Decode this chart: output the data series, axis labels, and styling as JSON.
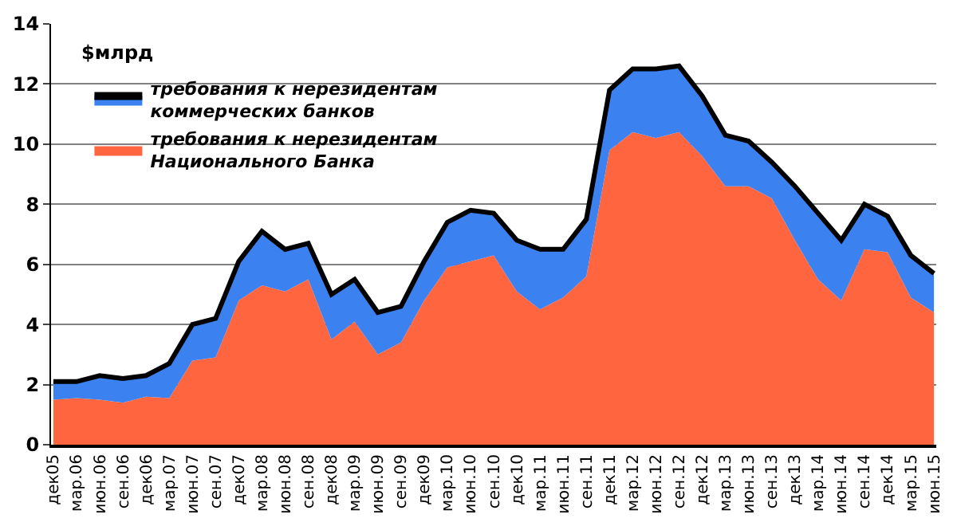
{
  "chart_data": {
    "type": "area",
    "stacked": true,
    "ylabel": "$млрд",
    "legend": "top left",
    "grid": "y",
    "categories": [
      "дек05",
      "мар.06",
      "июн.06",
      "сен.06",
      "дек06",
      "мар.07",
      "июн.07",
      "сен.07",
      "дек07",
      "мар.08",
      "июн.08",
      "сен.08",
      "дек08",
      "мар.09",
      "июн.09",
      "сен.09",
      "дек09",
      "мар.10",
      "июн.10",
      "сен.10",
      "дек10",
      "мар.11",
      "июн.11",
      "сен.11",
      "дек11",
      "мар.12",
      "июн.12",
      "сен.12",
      "дек12",
      "мар.13",
      "июн.13",
      "сен.13",
      "дек13",
      "мар.14",
      "июн.14",
      "сен.14",
      "дек14",
      "мар.15",
      "июн.15"
    ],
    "ylim": [
      0,
      14
    ],
    "yticks": [
      0,
      2,
      4,
      6,
      8,
      10,
      12,
      14
    ],
    "series": [
      {
        "name": "требования к нерезидентам\nНационального Банка",
        "color": "#ff6640",
        "values": [
          1.5,
          1.55,
          1.5,
          1.4,
          1.6,
          1.55,
          2.8,
          2.9,
          4.8,
          5.3,
          5.1,
          5.5,
          3.5,
          4.1,
          3.0,
          3.4,
          4.8,
          5.9,
          6.1,
          6.3,
          5.1,
          4.5,
          4.9,
          5.6,
          9.8,
          10.4,
          10.2,
          10.4,
          9.6,
          8.6,
          8.6,
          8.2,
          6.8,
          5.5,
          4.8,
          6.5,
          6.4,
          4.9,
          4.4
        ]
      },
      {
        "name": "требования к нерезидентам\nкоммерческих банков",
        "color": "#3b82f0",
        "values": [
          0.6,
          0.55,
          0.8,
          0.8,
          0.7,
          1.15,
          1.2,
          1.3,
          1.3,
          1.8,
          1.4,
          1.2,
          1.5,
          1.4,
          1.4,
          1.2,
          1.3,
          1.5,
          1.7,
          1.4,
          1.7,
          2.0,
          1.6,
          1.9,
          2.0,
          2.1,
          2.3,
          2.2,
          2.0,
          1.7,
          1.5,
          1.2,
          1.8,
          2.2,
          2.0,
          1.5,
          1.2,
          1.4,
          1.3
        ]
      }
    ]
  }
}
